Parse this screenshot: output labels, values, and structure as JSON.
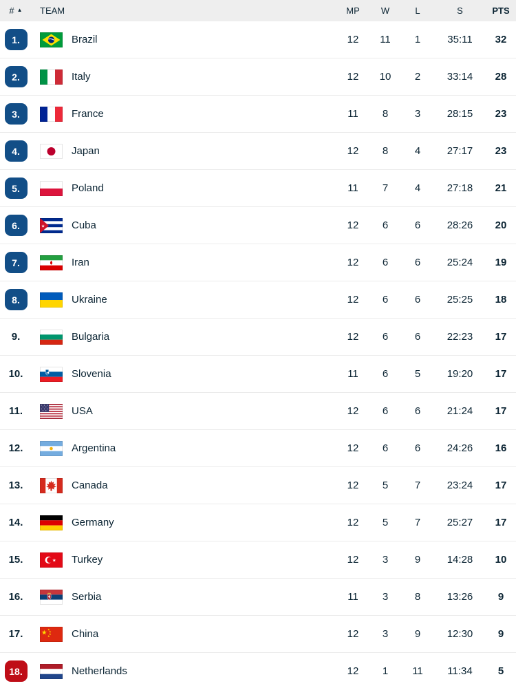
{
  "colors": {
    "text": "#0b2433",
    "header_bg": "#eeeeee",
    "divider": "#ebebeb",
    "badge_blue": "#124e87",
    "badge_red": "#bf0d17"
  },
  "table": {
    "columns": {
      "rank": "#",
      "team": "TEAM",
      "mp": "MP",
      "w": "W",
      "l": "L",
      "s": "S",
      "pts": "PTS"
    },
    "sort_indicator": "▲",
    "rows": [
      {
        "rank": "1.",
        "badge": "blue",
        "team": "Brazil",
        "flag": "brazil",
        "mp": "12",
        "w": "11",
        "l": "1",
        "s": "35:11",
        "pts": "32"
      },
      {
        "rank": "2.",
        "badge": "blue",
        "team": "Italy",
        "flag": "italy",
        "mp": "12",
        "w": "10",
        "l": "2",
        "s": "33:14",
        "pts": "28"
      },
      {
        "rank": "3.",
        "badge": "blue",
        "team": "France",
        "flag": "france",
        "mp": "11",
        "w": "8",
        "l": "3",
        "s": "28:15",
        "pts": "23"
      },
      {
        "rank": "4.",
        "badge": "blue",
        "team": "Japan",
        "flag": "japan",
        "mp": "12",
        "w": "8",
        "l": "4",
        "s": "27:17",
        "pts": "23"
      },
      {
        "rank": "5.",
        "badge": "blue",
        "team": "Poland",
        "flag": "poland",
        "mp": "11",
        "w": "7",
        "l": "4",
        "s": "27:18",
        "pts": "21"
      },
      {
        "rank": "6.",
        "badge": "blue",
        "team": "Cuba",
        "flag": "cuba",
        "mp": "12",
        "w": "6",
        "l": "6",
        "s": "28:26",
        "pts": "20"
      },
      {
        "rank": "7.",
        "badge": "blue",
        "team": "Iran",
        "flag": "iran",
        "mp": "12",
        "w": "6",
        "l": "6",
        "s": "25:24",
        "pts": "19"
      },
      {
        "rank": "8.",
        "badge": "blue",
        "team": "Ukraine",
        "flag": "ukraine",
        "mp": "12",
        "w": "6",
        "l": "6",
        "s": "25:25",
        "pts": "18"
      },
      {
        "rank": "9.",
        "badge": "none",
        "team": "Bulgaria",
        "flag": "bulgaria",
        "mp": "12",
        "w": "6",
        "l": "6",
        "s": "22:23",
        "pts": "17"
      },
      {
        "rank": "10.",
        "badge": "none",
        "team": "Slovenia",
        "flag": "slovenia",
        "mp": "11",
        "w": "6",
        "l": "5",
        "s": "19:20",
        "pts": "17"
      },
      {
        "rank": "11.",
        "badge": "none",
        "team": "USA",
        "flag": "usa",
        "mp": "12",
        "w": "6",
        "l": "6",
        "s": "21:24",
        "pts": "17"
      },
      {
        "rank": "12.",
        "badge": "none",
        "team": "Argentina",
        "flag": "argentina",
        "mp": "12",
        "w": "6",
        "l": "6",
        "s": "24:26",
        "pts": "16"
      },
      {
        "rank": "13.",
        "badge": "none",
        "team": "Canada",
        "flag": "canada",
        "mp": "12",
        "w": "5",
        "l": "7",
        "s": "23:24",
        "pts": "17"
      },
      {
        "rank": "14.",
        "badge": "none",
        "team": "Germany",
        "flag": "germany",
        "mp": "12",
        "w": "5",
        "l": "7",
        "s": "25:27",
        "pts": "17"
      },
      {
        "rank": "15.",
        "badge": "none",
        "team": "Turkey",
        "flag": "turkey",
        "mp": "12",
        "w": "3",
        "l": "9",
        "s": "14:28",
        "pts": "10"
      },
      {
        "rank": "16.",
        "badge": "none",
        "team": "Serbia",
        "flag": "serbia",
        "mp": "11",
        "w": "3",
        "l": "8",
        "s": "13:26",
        "pts": "9"
      },
      {
        "rank": "17.",
        "badge": "none",
        "team": "China",
        "flag": "china",
        "mp": "12",
        "w": "3",
        "l": "9",
        "s": "12:30",
        "pts": "9"
      },
      {
        "rank": "18.",
        "badge": "red",
        "team": "Netherlands",
        "flag": "netherlands",
        "mp": "12",
        "w": "1",
        "l": "11",
        "s": "11:34",
        "pts": "5"
      }
    ]
  }
}
